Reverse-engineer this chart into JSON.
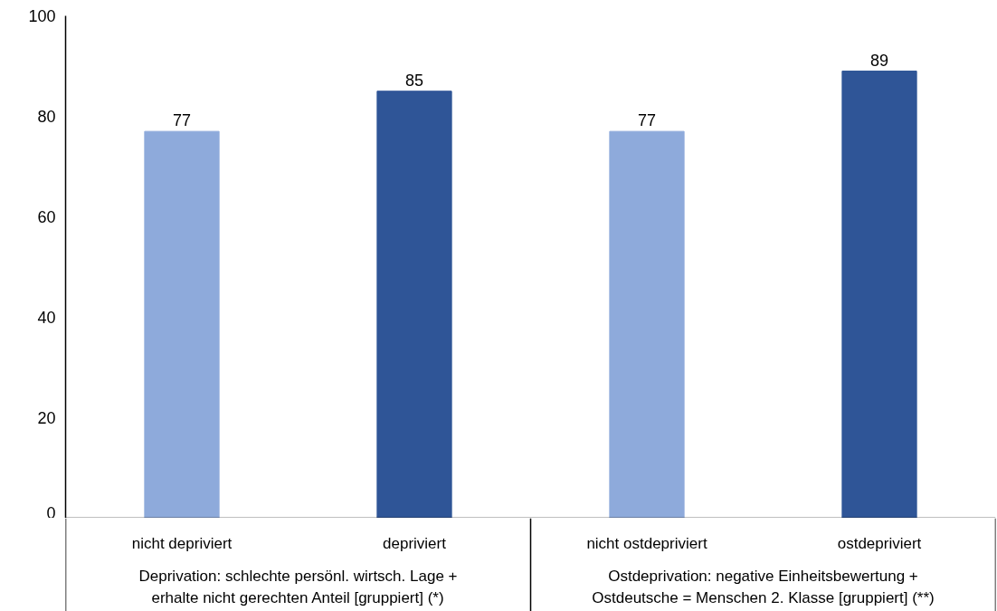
{
  "chart_data": {
    "type": "bar",
    "categories": [
      "nicht depriviert",
      "depriviert",
      "nicht ostdepriviert",
      "ostdepriviert"
    ],
    "values": [
      77,
      85,
      77,
      89
    ],
    "colors": [
      "#8eaadb",
      "#2f5597",
      "#8eaadb",
      "#2f5597"
    ],
    "ylim": [
      0,
      100
    ],
    "yticks": [
      0,
      20,
      40,
      60,
      80,
      100
    ],
    "grid": false,
    "data_labels": true,
    "annotations": [
      "Deprivation: schlechte persönl. wirtsch. Lage +\nerhalte nicht gerechten Anteil [gruppiert] (*)",
      "Ostdeprivation: negative Einheitsbewertung +\nOstdeutsche = Menschen 2. Klasse [gruppiert] (**)"
    ]
  }
}
